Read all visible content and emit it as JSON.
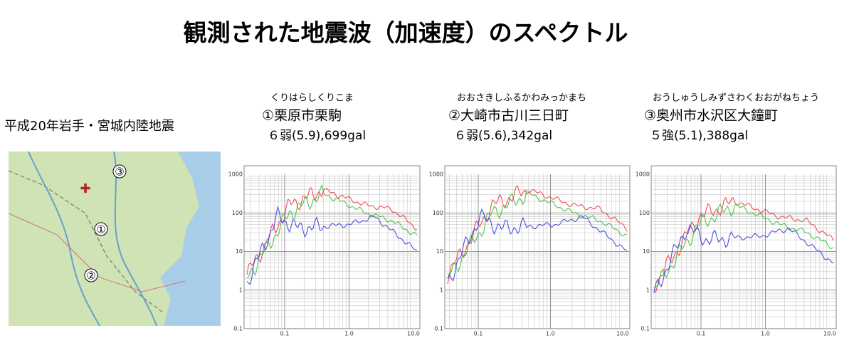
{
  "title": "観測された地震波（加速度）のスペクトル",
  "event": "平成20年岩手・宮城内陸地震",
  "map": {
    "markers": [
      "①",
      "②",
      "③"
    ]
  },
  "axes": {
    "yticks": [
      "1000",
      "100",
      "10",
      "1",
      "0.1"
    ],
    "xticks": [
      "0.1",
      "1.0",
      "10.0"
    ]
  },
  "stations": [
    {
      "reading": "くりはらしくりこま",
      "name": "①栗原市栗駒",
      "intensity": "６弱(5.9),699gal"
    },
    {
      "reading": "おおさきしふるかわみっかまち",
      "name": "②大崎市古川三日町",
      "intensity": "６弱(5.6),342gal"
    },
    {
      "reading": "おうしゅうしみずさわくおおがねちょう",
      "name": "③奥州市水沢区大鐘町",
      "intensity": "５強(5.1),388gal"
    }
  ]
}
